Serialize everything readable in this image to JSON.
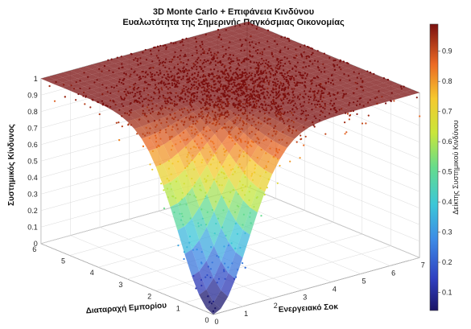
{
  "chart_data": {
    "type": "scatter",
    "title": "3D Monte Carlo + Επιφάνεια Κινδύνου",
    "subtitle": "Ευαλωτότητα της Σημερινής Παγκόσμιας Οικονομίας",
    "xlabel": "Ενεργειακό Σοκ",
    "ylabel": "Διαταραχή Εμπορίου",
    "zlabel": "Συστημικός Κίνδυνος",
    "colorbar_label": "Δείκτης Συστημικού Κινδύνου",
    "xlim": [
      0,
      7
    ],
    "ylim": [
      0,
      6
    ],
    "zlim": [
      0,
      1
    ],
    "xticks": [
      "0",
      "1",
      "2",
      "3",
      "4",
      "5",
      "6",
      "7"
    ],
    "yticks": [
      "0",
      "1",
      "2",
      "3",
      "4",
      "5",
      "6"
    ],
    "zticks": [
      "0",
      "0.1",
      "0.2",
      "0.3",
      "0.4",
      "0.5",
      "0.6",
      "0.7",
      "0.8",
      "0.9",
      "1"
    ],
    "cbticks": [
      "0.1",
      "0.2",
      "0.3",
      "0.4",
      "0.5",
      "0.6",
      "0.7",
      "0.8",
      "0.9"
    ],
    "clim": [
      0.04,
      0.99
    ],
    "colormap": "jet",
    "grid": true,
    "surface": {
      "description_formula": "risk = 1 - exp(-0.35*(x^2 + y^2))",
      "color": "#b03020",
      "opacity": 0.75
    },
    "scatter_series": {
      "approx_point_count": 4000,
      "sample_points": [
        {
          "x": 0.3,
          "y": 0.4,
          "z": 0.06
        },
        {
          "x": 0.8,
          "y": 0.5,
          "z": 0.18
        },
        {
          "x": 1.2,
          "y": 1.0,
          "z": 0.38
        },
        {
          "x": 1.5,
          "y": 1.5,
          "z": 0.55
        },
        {
          "x": 2.0,
          "y": 2.0,
          "z": 0.72
        },
        {
          "x": 3.0,
          "y": 2.5,
          "z": 0.88
        },
        {
          "x": 4.0,
          "y": 3.0,
          "z": 0.95
        },
        {
          "x": 5.0,
          "y": 4.0,
          "z": 0.98
        },
        {
          "x": 6.0,
          "y": 5.0,
          "z": 0.99
        }
      ]
    }
  }
}
